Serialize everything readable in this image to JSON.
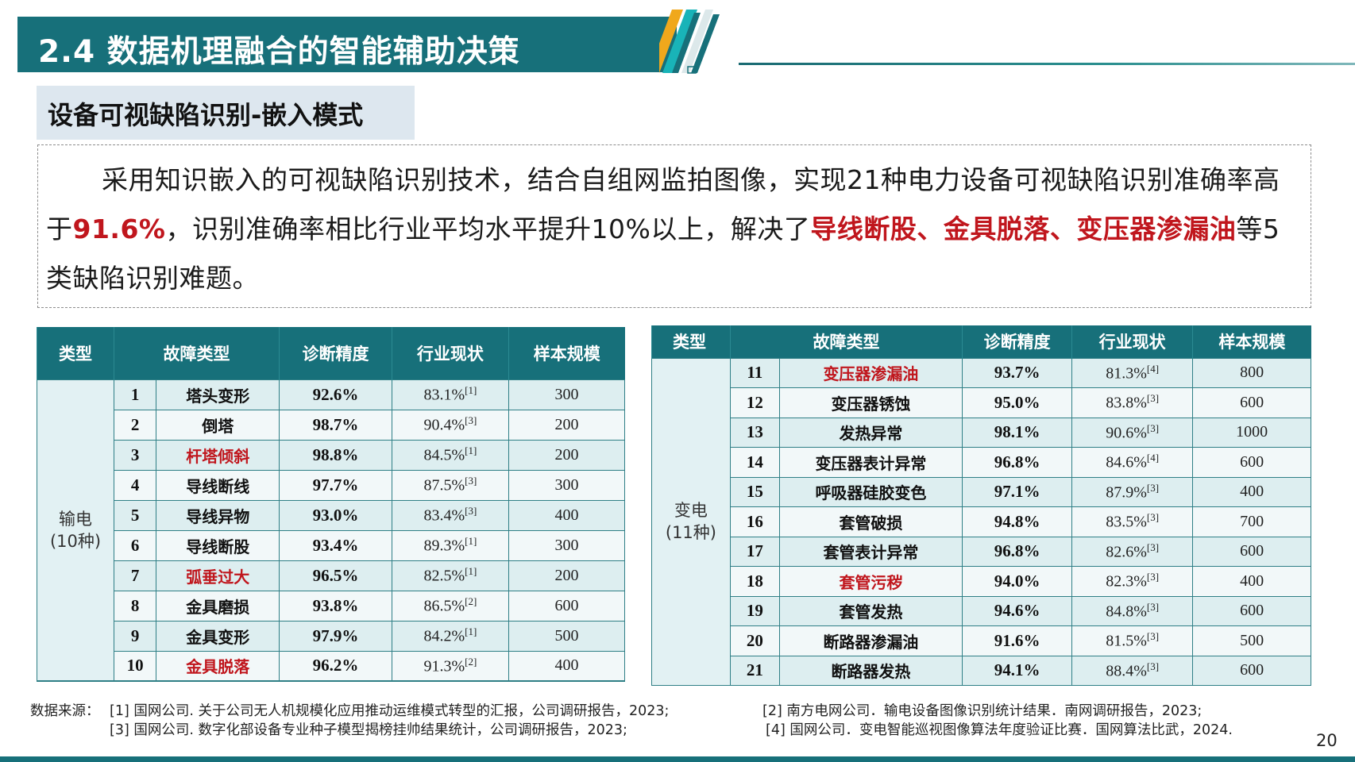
{
  "header": {
    "title": "2.4 数据机理融合的智能辅助决策",
    "subtitle": "设备可视缺陷识别-嵌入模式"
  },
  "colors": {
    "brand_teal": "#17707a",
    "accent_orange": "#f0a81c",
    "accent_cyan": "#19b3b8",
    "highlight_red": "#c0161d",
    "subtitle_bg": "#dde7ef"
  },
  "paragraph": {
    "seg1": "采用知识嵌入的可视缺陷识别技术，结合自组网监拍图像，实现21种电力设备可视缺陷识别准确率高于",
    "seg2_red": "91.6%",
    "seg3": "，识别准确率相比行业平均水平提升10%以上，解决了",
    "seg4_red": "导线断股、金具脱落、变压器渗漏油",
    "seg5": "等5类缺陷识别难题。"
  },
  "tables": {
    "headers": [
      "类型",
      "故障类型",
      "诊断精度",
      "行业现状",
      "样本规模"
    ],
    "left": {
      "category": "输电",
      "category_count": "(10种)",
      "rows": [
        {
          "no": "1",
          "name": "塔头变形",
          "accuracy": "92.6%",
          "industry": "83.1%",
          "ref": "[1]",
          "samples": "300",
          "highlight": false
        },
        {
          "no": "2",
          "name": "倒塔",
          "accuracy": "98.7%",
          "industry": "90.4%",
          "ref": "[3]",
          "samples": "200",
          "highlight": false
        },
        {
          "no": "3",
          "name": "杆塔倾斜",
          "accuracy": "98.8%",
          "industry": "84.5%",
          "ref": "[1]",
          "samples": "200",
          "highlight": true
        },
        {
          "no": "4",
          "name": "导线断线",
          "accuracy": "97.7%",
          "industry": "87.5%",
          "ref": "[3]",
          "samples": "300",
          "highlight": false
        },
        {
          "no": "5",
          "name": "导线异物",
          "accuracy": "93.0%",
          "industry": "83.4%",
          "ref": "[3]",
          "samples": "400",
          "highlight": false
        },
        {
          "no": "6",
          "name": "导线断股",
          "accuracy": "93.4%",
          "industry": "89.3%",
          "ref": "[1]",
          "samples": "300",
          "highlight": false
        },
        {
          "no": "7",
          "name": "弧垂过大",
          "accuracy": "96.5%",
          "industry": "82.5%",
          "ref": "[1]",
          "samples": "200",
          "highlight": true
        },
        {
          "no": "8",
          "name": "金具磨损",
          "accuracy": "93.8%",
          "industry": "86.5%",
          "ref": "[2]",
          "samples": "600",
          "highlight": false
        },
        {
          "no": "9",
          "name": "金具变形",
          "accuracy": "97.9%",
          "industry": "84.2%",
          "ref": "[1]",
          "samples": "500",
          "highlight": false
        },
        {
          "no": "10",
          "name": "金具脱落",
          "accuracy": "96.2%",
          "industry": "91.3%",
          "ref": "[2]",
          "samples": "400",
          "highlight": true
        }
      ]
    },
    "right": {
      "category": "变电",
      "category_count": "(11种)",
      "rows": [
        {
          "no": "11",
          "name": "变压器渗漏油",
          "accuracy": "93.7%",
          "industry": "81.3%",
          "ref": "[4]",
          "samples": "800",
          "highlight": true
        },
        {
          "no": "12",
          "name": "变压器锈蚀",
          "accuracy": "95.0%",
          "industry": "83.8%",
          "ref": "[3]",
          "samples": "600",
          "highlight": false
        },
        {
          "no": "13",
          "name": "发热异常",
          "accuracy": "98.1%",
          "industry": "90.6%",
          "ref": "[3]",
          "samples": "1000",
          "highlight": false
        },
        {
          "no": "14",
          "name": "变压器表计异常",
          "accuracy": "96.8%",
          "industry": "84.6%",
          "ref": "[4]",
          "samples": "600",
          "highlight": false
        },
        {
          "no": "15",
          "name": "呼吸器硅胶变色",
          "accuracy": "97.1%",
          "industry": "87.9%",
          "ref": "[3]",
          "samples": "400",
          "highlight": false
        },
        {
          "no": "16",
          "name": "套管破损",
          "accuracy": "94.8%",
          "industry": "83.5%",
          "ref": "[3]",
          "samples": "700",
          "highlight": false
        },
        {
          "no": "17",
          "name": "套管表计异常",
          "accuracy": "96.8%",
          "industry": "82.6%",
          "ref": "[3]",
          "samples": "600",
          "highlight": false
        },
        {
          "no": "18",
          "name": "套管污秽",
          "accuracy": "94.0%",
          "industry": "82.3%",
          "ref": "[3]",
          "samples": "400",
          "highlight": true
        },
        {
          "no": "19",
          "name": "套管发热",
          "accuracy": "94.6%",
          "industry": "84.8%",
          "ref": "[3]",
          "samples": "600",
          "highlight": false
        },
        {
          "no": "20",
          "name": "断路器渗漏油",
          "accuracy": "91.6%",
          "industry": "81.5%",
          "ref": "[3]",
          "samples": "500",
          "highlight": false
        },
        {
          "no": "21",
          "name": "断路器发热",
          "accuracy": "94.1%",
          "industry": "88.4%",
          "ref": "[3]",
          "samples": "600",
          "highlight": false
        }
      ]
    }
  },
  "footer": {
    "label": "数据来源：",
    "refs": [
      "[1] 国网公司. 关于公司无人机规模化应用推动运维模式转型的汇报，公司调研报告，2023;",
      "[2] 南方电网公司．输电设备图像识别统计结果．南网调研报告，2023;",
      "[3] 国网公司. 数字化部设备专业种子模型揭榜挂帅结果统计，公司调研报告，2023;",
      "[4] 国网公司．变电智能巡视图像算法年度验证比赛．国网算法比武，2024."
    ],
    "page_number": "20"
  }
}
